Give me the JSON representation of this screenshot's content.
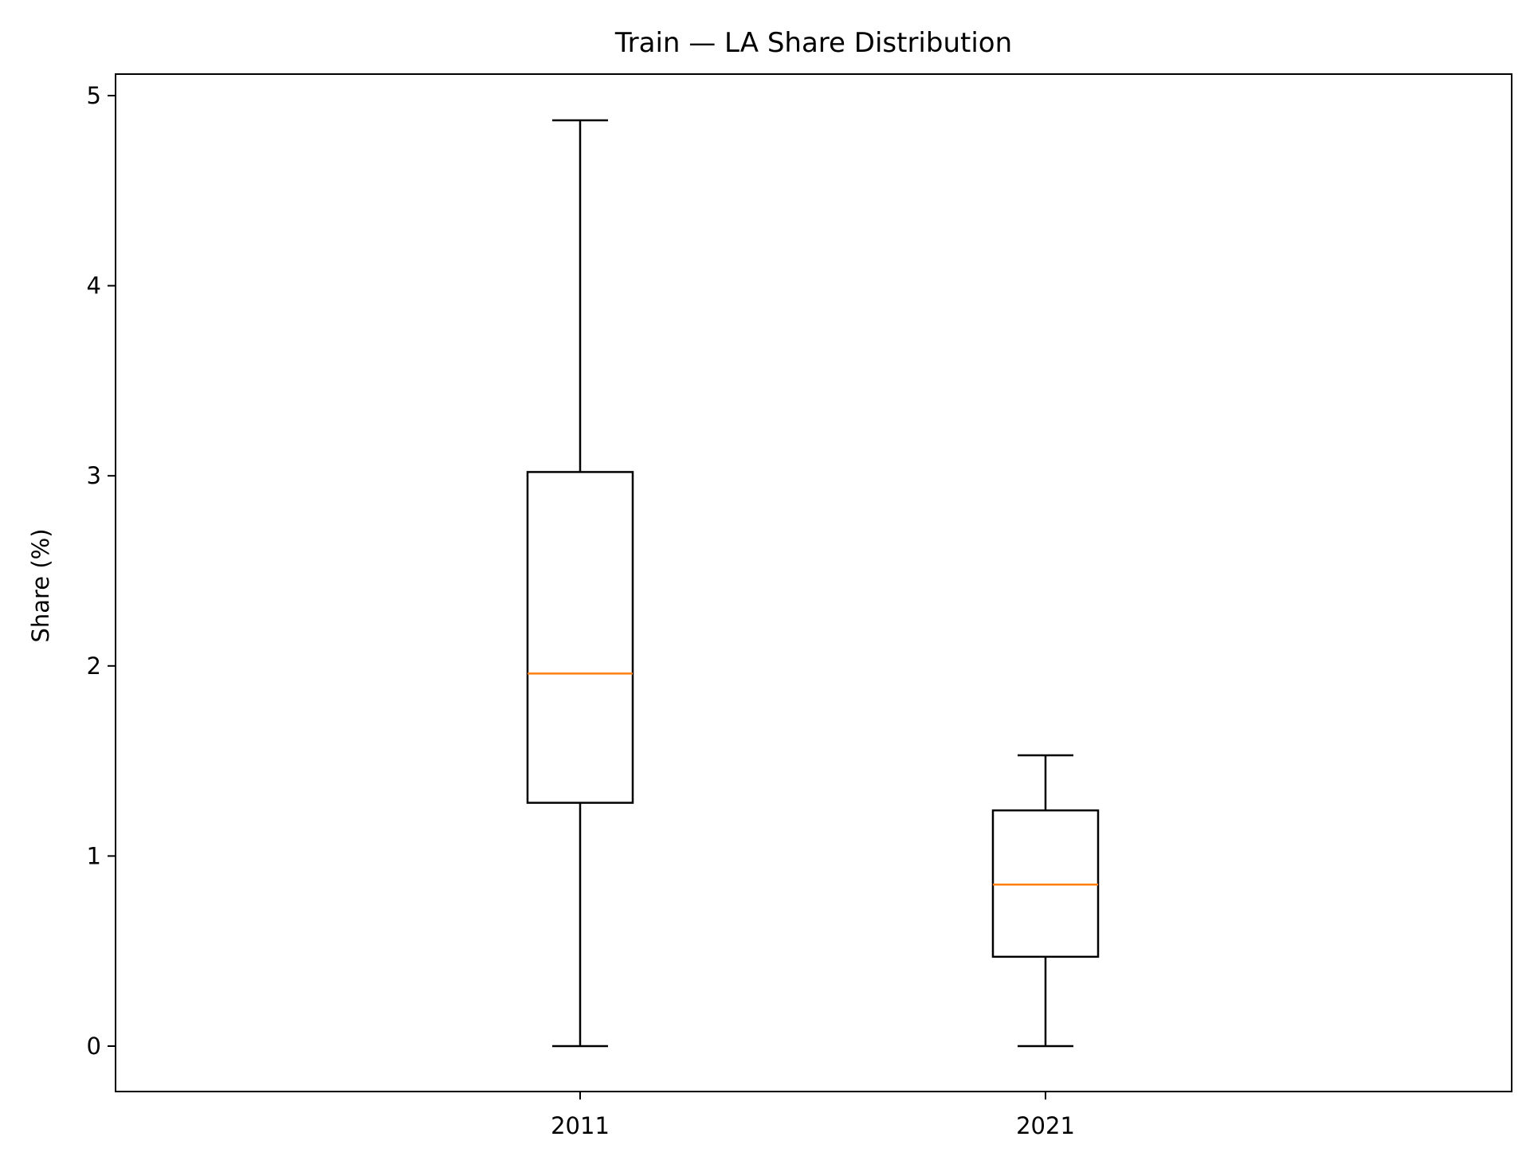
{
  "chart_data": {
    "type": "box",
    "title": "Train — LA Share Distribution",
    "xlabel": "",
    "ylabel": "Share (%)",
    "ylim": [
      -0.24,
      5.12
    ],
    "yticks": [
      0,
      1,
      2,
      3,
      4,
      5
    ],
    "grid": false,
    "categories": [
      "2011",
      "2021"
    ],
    "boxes": [
      {
        "category": "2011",
        "whisker_low": 0.0,
        "q1": 1.28,
        "median": 1.96,
        "q3": 3.02,
        "whisker_high": 4.87
      },
      {
        "category": "2021",
        "whisker_low": 0.0,
        "q1": 0.47,
        "median": 0.85,
        "q3": 1.24,
        "whisker_high": 1.53
      }
    ],
    "colors": {
      "box": "#000000",
      "median": "#ff7f0e"
    }
  }
}
